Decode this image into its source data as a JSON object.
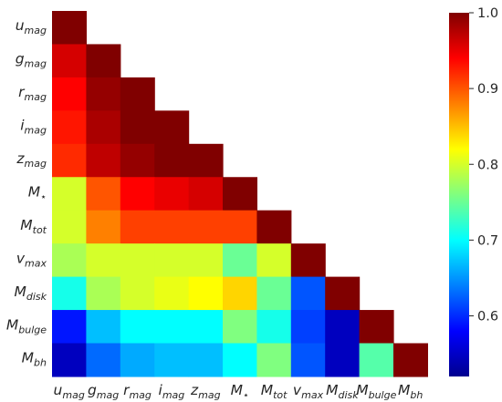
{
  "chart_data": {
    "type": "heatmap",
    "title": "",
    "mask": "upper-triangle-masked (lower triangle incl. diagonal shown)",
    "labels": [
      {
        "base": "u",
        "sub": "mag"
      },
      {
        "base": "g",
        "sub": "mag"
      },
      {
        "base": "r",
        "sub": "mag"
      },
      {
        "base": "i",
        "sub": "mag"
      },
      {
        "base": "z",
        "sub": "mag"
      },
      {
        "base": "M",
        "sub": "⋆"
      },
      {
        "base": "M",
        "sub": "tot"
      },
      {
        "base": "v",
        "sub": "max"
      },
      {
        "base": "M",
        "sub": "disk"
      },
      {
        "base": "M",
        "sub": "bulge"
      },
      {
        "base": "M",
        "sub": "bh"
      }
    ],
    "values": [
      [
        1.0
      ],
      [
        0.96,
        1.0
      ],
      [
        0.94,
        0.99,
        1.0
      ],
      [
        0.93,
        0.98,
        1.0,
        1.0
      ],
      [
        0.92,
        0.97,
        0.99,
        1.0,
        1.0
      ],
      [
        0.8,
        0.9,
        0.94,
        0.95,
        0.96,
        1.0
      ],
      [
        0.8,
        0.88,
        0.91,
        0.91,
        0.91,
        0.91,
        1.0
      ],
      [
        0.78,
        0.8,
        0.8,
        0.8,
        0.8,
        0.75,
        0.8,
        1.0
      ],
      [
        0.71,
        0.78,
        0.8,
        0.81,
        0.82,
        0.84,
        0.75,
        0.62,
        1.0
      ],
      [
        0.59,
        0.67,
        0.7,
        0.7,
        0.7,
        0.76,
        0.71,
        0.61,
        0.55,
        1.0
      ],
      [
        0.55,
        0.63,
        0.66,
        0.67,
        0.67,
        0.7,
        0.76,
        0.62,
        0.55,
        0.74,
        1.0
      ]
    ],
    "colorbar": {
      "colormap": "jet",
      "vmin": 0.52,
      "vmax": 1.0,
      "ticks": [
        "0.6",
        "0.7",
        "0.8",
        "0.9",
        "1.0"
      ],
      "tick_values": [
        0.6,
        0.7,
        0.8,
        0.9,
        1.0
      ]
    }
  }
}
